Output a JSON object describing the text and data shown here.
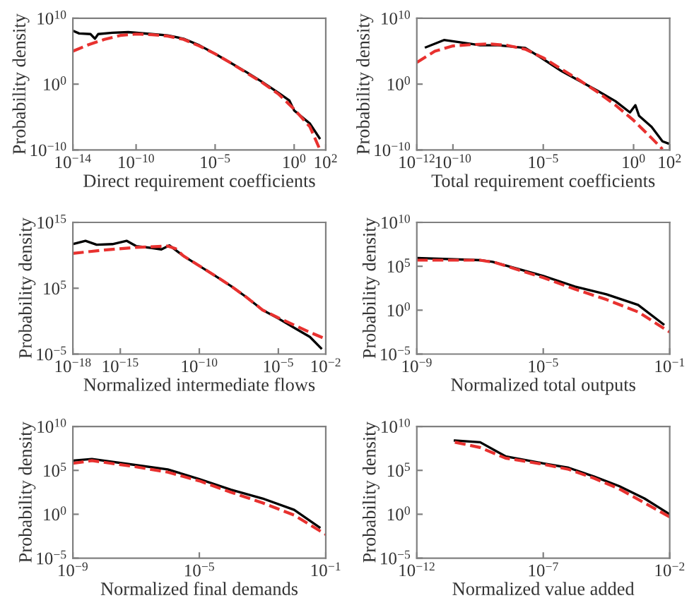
{
  "chart_data": [
    {
      "type": "line",
      "xlabel": "Direct requirement coefficients",
      "ylabel": "Probability density",
      "log": "xy",
      "grid": false,
      "xlim": [
        1e-14,
        100
      ],
      "xticks": [
        {
          "value": 1e-14,
          "label": "10$^{−14}$"
        },
        {
          "value": 1e-10,
          "label": "10$^{−10}$"
        },
        {
          "value": 1e-05,
          "label": "10$^{−5}$"
        },
        {
          "value": 1,
          "label": "10$^{0}$"
        },
        {
          "value": 100,
          "label": "10$^{2}$"
        }
      ],
      "ylim": [
        1e-10,
        10000000000.0
      ],
      "yticks": [
        {
          "value": 1e-10,
          "label": "10$^{−10}$"
        },
        {
          "value": 1,
          "label": "10$^{0}$"
        },
        {
          "value": 10000000000.0,
          "label": "10$^{10}$"
        }
      ],
      "series": [
        {
          "color": "#000000",
          "line_style": "solid",
          "x": [
            1e-14,
            2.5e-14,
            1.3e-13,
            2.5e-13,
            4e-13,
            3.2e-12,
            3.2e-11,
            1e-09,
            1e-08,
            1e-07,
            1e-06,
            1e-05,
            0.0001,
            0.001,
            0.01,
            0.1,
            0.5,
            1,
            10,
            40
          ],
          "values": [
            130000000.0,
            50000000.0,
            40000000.0,
            8000000.0,
            40000000.0,
            63000000.0,
            80000000.0,
            40000000.0,
            25000000.0,
            8000000.0,
            800000.0,
            40000.0,
            1600,
            63,
            2,
            0.05,
            0.0032,
            0.0001,
            1e-06,
            6.3e-09
          ]
        },
        {
          "color": "#e8312f",
          "line_style": "dashed",
          "x": [
            1e-14,
            1e-13,
            1e-12,
            1e-11,
            1e-10,
            1e-09,
            1e-08,
            1e-07,
            1e-06,
            1e-05,
            0.0001,
            0.001,
            0.01,
            0.1,
            1,
            10,
            40
          ],
          "values": [
            100000.0,
            1000000.0,
            6300000.0,
            25000000.0,
            40000000.0,
            32000000.0,
            20000000.0,
            6300000.0,
            630000.0,
            40000.0,
            1600,
            50,
            1.6,
            0.032,
            0.00016,
            3.2e-07,
            1.6e-10
          ]
        }
      ]
    },
    {
      "type": "line",
      "xlabel": "Total requirement coefficients",
      "ylabel": "Probability density",
      "log": "xy",
      "grid": false,
      "xlim": [
        1e-12,
        100
      ],
      "xticks": [
        {
          "value": 1e-12,
          "label": "10$^{−12}$"
        },
        {
          "value": 1e-10,
          "label": "10$^{−10}$"
        },
        {
          "value": 1e-05,
          "label": "10$^{−5}$"
        },
        {
          "value": 1,
          "label": "10$^{0}$"
        },
        {
          "value": 100,
          "label": "10$^{2}$"
        }
      ],
      "ylim": [
        1e-10,
        10000000000.0
      ],
      "yticks": [
        {
          "value": 1e-10,
          "label": "10$^{−10}$"
        },
        {
          "value": 1,
          "label": "10$^{0}$"
        },
        {
          "value": 10000000000.0,
          "label": "10$^{10}$"
        }
      ],
      "series": [
        {
          "color": "#000000",
          "line_style": "solid",
          "x": [
            3.2e-12,
            3.2e-11,
            1e-09,
            3.2e-09,
            3.2e-08,
            1e-06,
            1e-05,
            0.0001,
            0.001,
            0.01,
            0.1,
            0.63,
            1.26,
            2,
            10,
            40,
            80
          ],
          "values": [
            400000.0,
            5000000.0,
            1300000.0,
            790000.0,
            790000.0,
            320000.0,
            6300,
            100,
            3.2,
            0.1,
            0.0025,
            5e-05,
            0.00063,
            1.6e-05,
            3.2e-07,
            2e-09,
            1e-09
          ]
        },
        {
          "color": "#e8312f",
          "line_style": "dashed",
          "x": [
            1e-12,
            1e-11,
            1e-10,
            1e-09,
            1e-08,
            1e-07,
            1e-06,
            1e-05,
            0.0001,
            0.001,
            0.01,
            0.1,
            1,
            10,
            40
          ],
          "values": [
            2000,
            100000.0,
            630000.0,
            1000000.0,
            1300000.0,
            790000.0,
            200000.0,
            10000.0,
            200,
            4,
            0.063,
            0.00063,
            3.2e-06,
            6.3e-09,
            1.3e-10
          ]
        }
      ]
    },
    {
      "type": "line",
      "xlabel": "Normalized intermediate flows",
      "ylabel": "Probability density",
      "log": "xy",
      "grid": false,
      "xlim": [
        1e-18,
        0.01
      ],
      "xticks": [
        {
          "value": 1e-18,
          "label": "10$^{−18}$"
        },
        {
          "value": 1e-15,
          "label": "10$^{−15}$"
        },
        {
          "value": 1e-10,
          "label": "10$^{−10}$"
        },
        {
          "value": 1e-05,
          "label": "10$^{−5}$"
        },
        {
          "value": 0.01,
          "label": "10$^{−2}$"
        }
      ],
      "ylim": [
        1e-05,
        1000000000000000.0
      ],
      "yticks": [
        {
          "value": 1e-05,
          "label": "10$^{−5}$"
        },
        {
          "value": 100000.0,
          "label": "10$^{5}$"
        },
        {
          "value": 1000000000000000.0,
          "label": "10$^{15}$"
        }
      ],
      "series": [
        {
          "color": "#000000",
          "line_style": "solid",
          "x": [
            1e-18,
            6.3e-18,
            3.2e-17,
            3.2e-16,
            2.5e-15,
            1e-14,
            1e-13,
            4e-13,
            1.3e-12,
            1e-11,
            1e-10,
            1e-09,
            1e-08,
            1e-07,
            1e-06,
            1e-05,
            0.0001,
            0.001,
            0.005
          ],
          "values": [
            500000000000.0,
            1600000000000.0,
            400000000000.0,
            500000000000.0,
            1600000000000.0,
            250000000000.0,
            130000000000.0,
            79000000000.0,
            320000000000.0,
            7900000000.0,
            250000000.0,
            7900000.0,
            220000.0,
            4000,
            50,
            2.5,
            0.1,
            0.004,
            7.9e-05
          ]
        },
        {
          "color": "#e8312f",
          "line_style": "dashed",
          "x": [
            1e-18,
            1e-16,
            1e-14,
            1e-12,
            3.2e-12,
            1e-11,
            1e-10,
            1e-09,
            1e-08,
            1e-07,
            1e-06,
            1e-05,
            0.0001,
            0.001,
            0.0079
          ],
          "values": [
            20000000000.0,
            63000000000.0,
            160000000000.0,
            250000000000.0,
            100000000000.0,
            7900000000.0,
            250000000.0,
            7900000.0,
            220000.0,
            4000,
            50,
            3.2,
            0.25,
            0.02,
            0.0025
          ]
        }
      ]
    },
    {
      "type": "line",
      "xlabel": "Normalized total outputs",
      "ylabel": "Probability density",
      "log": "xy",
      "grid": false,
      "xlim": [
        1e-09,
        0.1
      ],
      "xticks": [
        {
          "value": 1e-09,
          "label": "10$^{−9}$"
        },
        {
          "value": 1e-05,
          "label": "10$^{−5}$"
        },
        {
          "value": 0.1,
          "label": "10$^{−1}$"
        }
      ],
      "ylim": [
        1e-05,
        10000000000.0
      ],
      "yticks": [
        {
          "value": 1e-05,
          "label": "10$^{−5}$"
        },
        {
          "value": 1,
          "label": "10$^{0}$"
        },
        {
          "value": 100000.0,
          "label": "10$^{5}$"
        },
        {
          "value": 10000000000.0,
          "label": "10$^{10}$"
        }
      ],
      "series": [
        {
          "color": "#000000",
          "line_style": "solid",
          "x": [
            1e-09,
            1e-07,
            2.5e-07,
            1e-05,
            0.0001,
            0.001,
            0.01,
            0.063
          ],
          "values": [
            890000.0,
            500000.0,
            320000.0,
            7900,
            500,
            63,
            4,
            0.025
          ]
        },
        {
          "color": "#e8312f",
          "line_style": "dashed",
          "x": [
            1e-09,
            1e-07,
            3.2e-07,
            1e-05,
            0.0001,
            0.001,
            0.01,
            0.1
          ],
          "values": [
            500000.0,
            500000.0,
            250000.0,
            5000,
            250,
            16,
            0.63,
            0.0032
          ]
        }
      ]
    },
    {
      "type": "line",
      "xlabel": "Normalized final demands",
      "ylabel": "Probability density",
      "log": "xy",
      "grid": false,
      "xlim": [
        1e-09,
        0.1
      ],
      "xticks": [
        {
          "value": 1e-09,
          "label": "10$^{−9}$"
        },
        {
          "value": 1e-05,
          "label": "10$^{−5}$"
        },
        {
          "value": 0.1,
          "label": "10$^{−1}$"
        }
      ],
      "ylim": [
        1e-05,
        10000000000.0
      ],
      "yticks": [
        {
          "value": 1e-05,
          "label": "10$^{−5}$"
        },
        {
          "value": 1,
          "label": "10$^{0}$"
        },
        {
          "value": 100000.0,
          "label": "10$^{5}$"
        },
        {
          "value": 10000000000.0,
          "label": "10$^{10}$"
        }
      ],
      "series": [
        {
          "color": "#000000",
          "line_style": "solid",
          "x": [
            1e-09,
            4e-09,
            1e-07,
            1e-06,
            1e-05,
            0.0001,
            0.001,
            0.01,
            0.063
          ],
          "values": [
            1300000.0,
            2000000.0,
            400000.0,
            130000.0,
            10000.0,
            630,
            63,
            3.2,
            0.032
          ]
        },
        {
          "color": "#e8312f",
          "line_style": "dashed",
          "x": [
            1e-09,
            4e-09,
            1e-07,
            1e-06,
            1e-05,
            0.0001,
            0.001,
            0.01,
            0.1
          ],
          "values": [
            630000.0,
            1300000.0,
            250000.0,
            63000.0,
            6300,
            320,
            20,
            0.79,
            0.005
          ]
        }
      ]
    },
    {
      "type": "line",
      "xlabel": "Normalized value added",
      "ylabel": "Probability density",
      "log": "xy",
      "grid": false,
      "xlim": [
        1e-12,
        0.01
      ],
      "xticks": [
        {
          "value": 1e-12,
          "label": "10$^{−12}$"
        },
        {
          "value": 1e-07,
          "label": "10$^{−7}$"
        },
        {
          "value": 0.01,
          "label": "10$^{−2}$"
        }
      ],
      "ylim": [
        1e-05,
        10000000000.0
      ],
      "yticks": [
        {
          "value": 1e-05,
          "label": "10$^{−5}$"
        },
        {
          "value": 1,
          "label": "10$^{0}$"
        },
        {
          "value": 100000.0,
          "label": "10$^{5}$"
        },
        {
          "value": 10000000000.0,
          "label": "10$^{10}$"
        }
      ],
      "series": [
        {
          "color": "#000000",
          "line_style": "solid",
          "x": [
            3.2e-11,
            3.2e-10,
            3.2e-09,
            1e-07,
            1e-06,
            1e-05,
            0.0001,
            0.001,
            0.01
          ],
          "values": [
            250000000.0,
            160000000.0,
            4000000.0,
            630000.0,
            200000.0,
            20000.0,
            1600,
            63,
            1
          ]
        },
        {
          "color": "#e8312f",
          "line_style": "dashed",
          "x": [
            3.2e-11,
            3.2e-10,
            3.2e-09,
            1e-07,
            1e-06,
            1e-05,
            0.0001,
            0.001,
            0.01
          ],
          "values": [
            160000000.0,
            40000000.0,
            2500000.0,
            500000.0,
            130000.0,
            13000.0,
            800,
            20,
            0.5
          ]
        }
      ]
    }
  ]
}
